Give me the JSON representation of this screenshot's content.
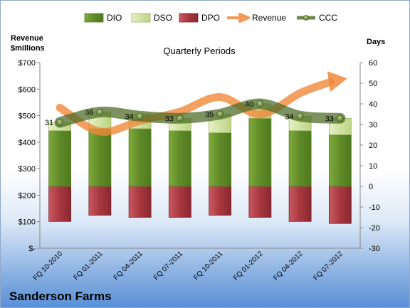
{
  "chart_data": {
    "type": "bar",
    "title": "Quarterly Periods",
    "company": "Sanderson Farms",
    "left_axis_label": [
      "Revenue",
      "$millions"
    ],
    "right_axis_label": "Days",
    "left_ylim": [
      0,
      700
    ],
    "right_ylim": [
      -30,
      60
    ],
    "left_ticks": [
      "$-",
      "$100",
      "$200",
      "$300",
      "$400",
      "$500",
      "$600",
      "$700"
    ],
    "right_ticks": [
      "-30",
      "-20",
      "-10",
      "0",
      "10",
      "20",
      "30",
      "40",
      "50",
      "60"
    ],
    "categories": [
      "FQ 10-2010",
      "FQ 01-2011",
      "FQ 04-2011",
      "FQ 07-2011",
      "FQ 10-2011",
      "FQ 01-2012",
      "FQ 04-2012",
      "FQ 07-2012"
    ],
    "legend": [
      "DIO",
      "DSO",
      "DPO",
      "Revenue",
      "CCC"
    ],
    "colors": {
      "DIO": "#6b9a2e",
      "DSO": "#d4e6a8",
      "DPO": "#b04048",
      "Revenue": "#f0883a",
      "CCC": "#4a6a24"
    },
    "series": [
      {
        "name": "DIO",
        "values": [
          27,
          28,
          28,
          27,
          26,
          33,
          27,
          25
        ]
      },
      {
        "name": "DSO",
        "values": [
          4,
          8,
          7,
          6,
          9,
          7,
          7,
          8
        ]
      },
      {
        "name": "DPO",
        "values": [
          -17,
          -14,
          -15,
          -15,
          -14,
          -15,
          -17,
          -18
        ]
      },
      {
        "name": "Revenue",
        "values": [
          530,
          440,
          480,
          515,
          570,
          505,
          585,
          635
        ]
      },
      {
        "name": "CCC",
        "values": [
          31,
          36,
          34,
          33,
          35,
          40,
          34,
          33
        ]
      }
    ],
    "ccc_labels": [
      "31",
      "36",
      "34",
      "33",
      "35",
      "40",
      "34",
      "33"
    ]
  }
}
